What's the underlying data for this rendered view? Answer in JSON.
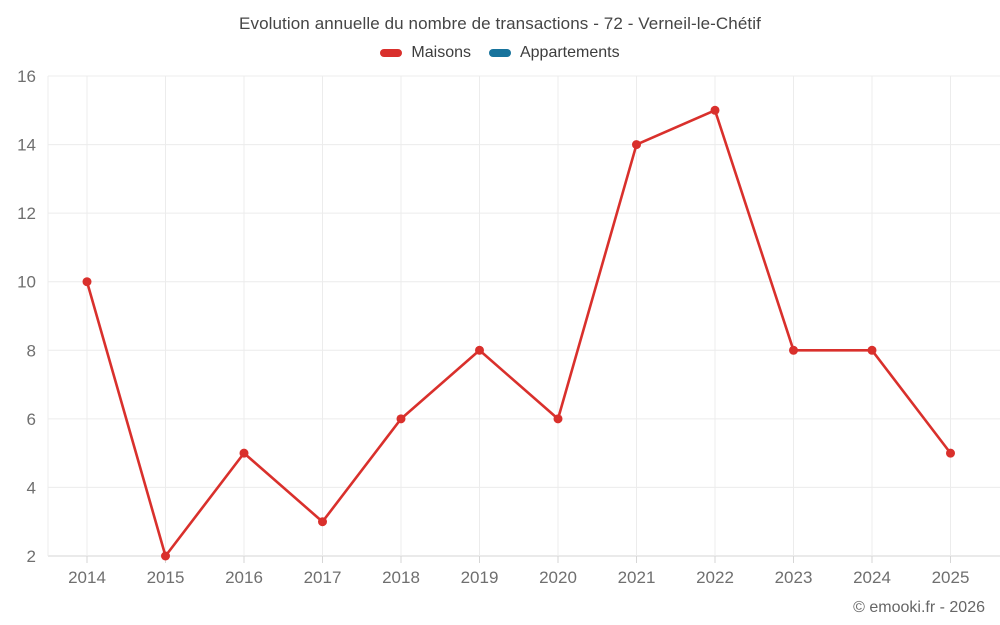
{
  "chart_data": {
    "type": "line",
    "title": "Evolution annuelle du nombre de transactions - 72 - Verneil-le-Chétif",
    "categories": [
      "2014",
      "2015",
      "2016",
      "2017",
      "2018",
      "2019",
      "2020",
      "2021",
      "2022",
      "2023",
      "2024",
      "2025"
    ],
    "series": [
      {
        "name": "Maisons",
        "color": "#d9302c",
        "values": [
          10,
          2,
          5,
          3,
          6,
          8,
          6,
          14,
          15,
          8,
          8,
          5
        ]
      },
      {
        "name": "Appartements",
        "color": "#17739c",
        "values": []
      }
    ],
    "xlabel": "",
    "ylabel": "",
    "ylim": [
      2,
      16
    ],
    "ytick_step": 2,
    "grid": true,
    "legend_position": "top"
  },
  "footer": {
    "copyright": "© emooki.fr - 2026"
  },
  "colors": {
    "background": "#ffffff",
    "grid": "#ececec",
    "axis": "#d6d6d6",
    "tick_text": "#6f6f6f",
    "title_text": "#454545",
    "legend_text": "#3d3d3d",
    "watermark_text": "#666666"
  }
}
